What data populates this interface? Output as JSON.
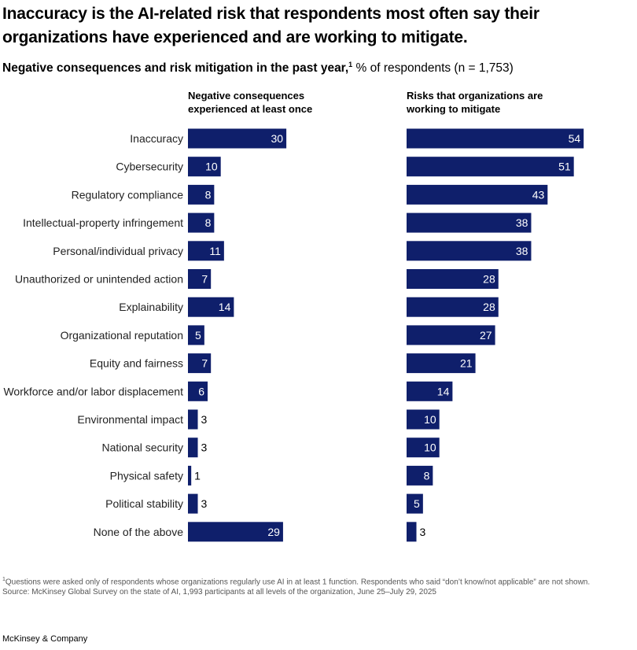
{
  "headline": "Inaccuracy is the AI-related risk that respondents most often say their organizations have experienced and are working to mitigate.",
  "subtitle": {
    "bold": "Negative consequences and risk mitigation in the past year,",
    "footnote_mark": "1",
    "rest": " % of respondents (n = 1,753)"
  },
  "colors": {
    "bar": "#0f1f6b",
    "label_inside": "#ffffff",
    "label_outside": "#000000"
  },
  "chart_data": [
    {
      "type": "bar",
      "orientation": "horizontal",
      "title": "Negative consequences experienced at least once",
      "categories": [
        "Inaccuracy",
        "Cybersecurity",
        "Regulatory compliance",
        "Intellectual-property infringement",
        "Personal/individual privacy",
        "Unauthorized or unintended action",
        "Explainability",
        "Organizational reputation",
        "Equity and fairness",
        "Workforce and/or labor displacement",
        "Environmental impact",
        "National security",
        "Physical safety",
        "Political stability",
        "None of the above"
      ],
      "values": [
        30,
        10,
        8,
        8,
        11,
        7,
        14,
        5,
        7,
        6,
        3,
        3,
        1,
        3,
        29
      ],
      "xlim": [
        0,
        60
      ]
    },
    {
      "type": "bar",
      "orientation": "horizontal",
      "title": "Risks that organizations are working to mitigate",
      "categories": [
        "Inaccuracy",
        "Cybersecurity",
        "Regulatory compliance",
        "Intellectual-property infringement",
        "Personal/individual privacy",
        "Unauthorized or unintended action",
        "Explainability",
        "Organizational reputation",
        "Equity and fairness",
        "Workforce and/or labor displacement",
        "Environmental impact",
        "National security",
        "Physical safety",
        "Political stability",
        "None of the above"
      ],
      "values": [
        54,
        51,
        43,
        38,
        38,
        28,
        28,
        27,
        21,
        14,
        10,
        10,
        8,
        5,
        3
      ],
      "xlim": [
        0,
        60
      ]
    }
  ],
  "footnotes": {
    "note_mark": "1",
    "note": "Questions were asked only of respondents whose organizations regularly use AI in at least 1 function. Respondents who said “don’t know/not applicable” are not shown.",
    "source": "Source: McKinsey Global Survey on the state of AI, 1,993 participants at all levels of the organization, June 25–July 29, 2025"
  },
  "brand": "McKinsey & Company"
}
